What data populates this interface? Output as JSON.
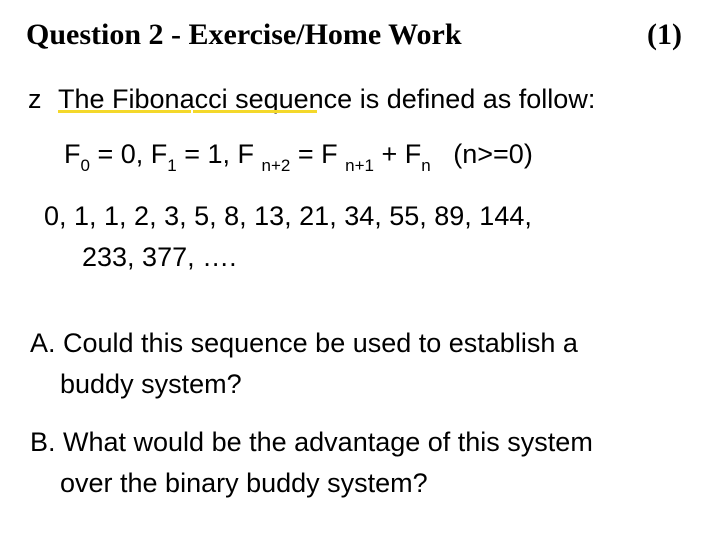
{
  "colors": {
    "text": "#000000",
    "background": "#ffffff",
    "highlight_underline": "#f4d82a"
  },
  "typography": {
    "title_font": "Times New Roman",
    "body_font": "Arial",
    "title_size_pt": 30,
    "body_size_pt": 27,
    "subscript_size_pt": 17
  },
  "title": {
    "left": "Question 2 -  Exercise/Home Work",
    "right": "(1)"
  },
  "bullet": {
    "marker": "z",
    "text_part1": "The Fibonacci sequence",
    "text_part2": " is defined as follow:"
  },
  "formula": {
    "f0_lhs": "F",
    "f0_sub": "0",
    "f0_eq": " = 0, ",
    "f1_lhs": "F",
    "f1_sub": "1",
    "f1_eq": " = 1, ",
    "fn2_lhs": "F ",
    "fn2_sub": "n+2",
    "eq_mid": " = ",
    "fn1_lhs": "F ",
    "fn1_sub": "n+1",
    "plus": " + ",
    "fn_lhs": "F",
    "fn_sub": "n",
    "cond": "   (n>=0)"
  },
  "sequence": {
    "line1": "0, 1, 1, 2, 3, 5, 8, 13, 21, 34, 55, 89, 144,",
    "line2": "233, 377, …."
  },
  "questionA": {
    "line1": "A. Could this sequence be used to establish a",
    "line2": "buddy system?"
  },
  "questionB": {
    "line1": "B. What would be the advantage of this system",
    "line2": "over the binary buddy system?"
  }
}
